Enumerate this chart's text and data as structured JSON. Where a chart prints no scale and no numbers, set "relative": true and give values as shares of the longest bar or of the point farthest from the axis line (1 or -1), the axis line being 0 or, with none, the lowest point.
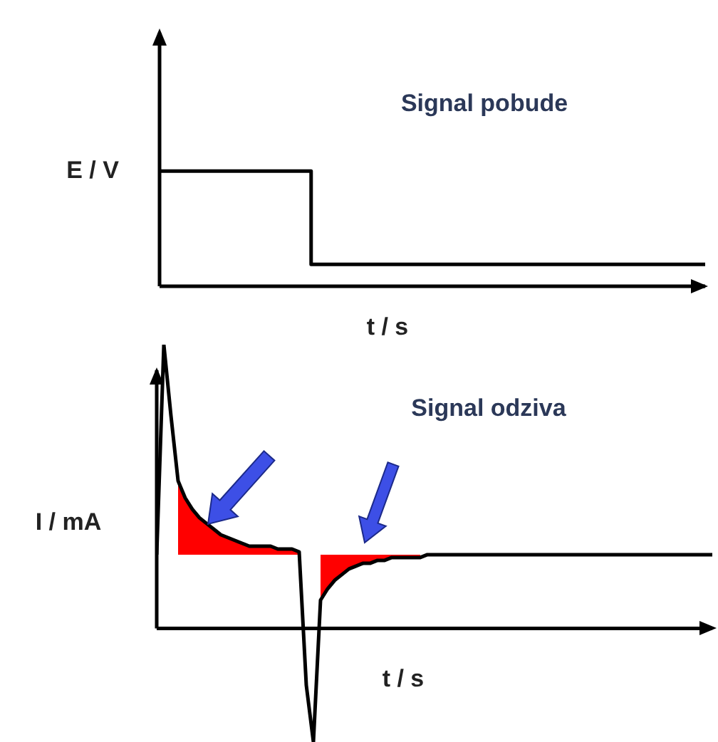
{
  "chart_data": [
    {
      "type": "step",
      "title": "Signal pobude",
      "xlabel": "t / s",
      "ylabel": "E / V",
      "relative": true,
      "tick_labels": false,
      "legend": false,
      "grid": false,
      "marker": "none",
      "categories": [
        null,
        null,
        null,
        null,
        null,
        null,
        null,
        null,
        null,
        null,
        null,
        null,
        null,
        null,
        null,
        null,
        null,
        null,
        null
      ],
      "series": [
        {
          "color": "#000000",
          "values": [
            1,
            1,
            1,
            1,
            1,
            0.19,
            0.19,
            0.19,
            0.19,
            0.19,
            0.19,
            0.19,
            0.19,
            0.19,
            0.19,
            0.19,
            0.19,
            0.19,
            0.19
          ]
        }
      ]
    },
    {
      "type": "line",
      "title": "Signal odziva",
      "xlabel": "t / s",
      "ylabel": "I / mA",
      "relative": true,
      "tick_labels": false,
      "legend": false,
      "grid": false,
      "marker": "none",
      "categories": [
        null,
        null,
        null,
        null,
        null,
        null,
        null,
        null,
        null,
        null,
        null,
        null,
        null,
        null,
        null,
        null,
        null,
        null,
        null,
        null,
        null,
        null,
        null,
        null,
        null,
        null,
        null,
        null,
        null,
        null,
        null,
        null,
        null,
        null,
        null,
        null,
        null,
        null,
        null,
        null,
        null,
        null,
        null,
        null,
        null,
        null,
        null,
        null,
        null,
        null,
        null,
        null,
        null,
        null,
        null,
        null,
        null,
        null,
        null,
        null,
        null,
        null,
        null,
        null,
        null,
        null,
        null,
        null,
        null,
        null,
        null,
        null,
        null,
        null,
        null,
        null,
        null,
        null,
        null
      ],
      "series": [
        {
          "type": "area",
          "color": "#ff0000",
          "values": [
            null,
            null,
            null,
            null,
            null,
            null,
            null,
            null,
            null,
            null,
            null,
            null,
            null,
            null,
            null,
            null,
            null,
            null,
            null,
            null,
            null,
            null,
            null,
            null,
            null,
            null,
            null,
            null,
            null,
            null,
            null,
            null,
            null,
            null,
            null,
            null,
            null,
            null,
            null,
            null,
            null,
            null,
            null,
            null,
            null,
            null,
            null,
            null,
            null,
            null,
            null,
            null,
            null,
            null,
            null,
            null,
            null,
            null,
            null,
            null,
            null,
            null,
            null,
            null,
            null,
            null,
            null,
            null,
            null,
            null,
            null,
            null,
            null,
            null,
            null,
            null,
            null,
            null,
            null
          ],
          "lower": [
            null,
            null,
            null,
            0.26,
            0.26,
            0.26,
            0.26,
            0.26,
            0.26,
            0.26,
            0.26,
            0.26,
            0.26,
            0.26,
            0.26,
            0.26,
            0.26,
            0.26,
            0.26,
            0.26,
            0.26,
            null,
            null,
            0.1,
            0.14,
            0.17,
            0.19,
            0.21,
            0.22,
            0.23,
            0.23,
            0.24,
            0.24,
            0.25,
            0.25,
            0.25,
            0.25,
            0.25,
            null,
            null,
            null,
            null,
            null,
            null,
            null,
            null,
            null,
            null,
            null,
            null,
            null,
            null,
            null,
            null,
            null,
            null,
            null,
            null,
            null,
            null,
            null,
            null,
            null,
            null,
            null,
            null,
            null,
            null,
            null,
            null,
            null,
            null,
            null,
            null,
            null,
            null,
            null,
            null,
            null
          ],
          "upper": [
            null,
            null,
            null,
            0.52,
            0.46,
            0.42,
            0.39,
            0.37,
            0.35,
            0.33,
            0.32,
            0.31,
            0.3,
            0.29,
            0.29,
            0.29,
            0.29,
            0.28,
            0.28,
            0.28,
            0.27,
            null,
            null,
            0.26,
            0.26,
            0.26,
            0.26,
            0.26,
            0.26,
            0.26,
            0.26,
            0.26,
            0.26,
            0.26,
            0.26,
            0.26,
            0.26,
            0.26,
            null,
            null,
            null,
            null,
            null,
            null,
            null,
            null,
            null,
            null,
            null,
            null,
            null,
            null,
            null,
            null,
            null,
            null,
            null,
            null,
            null,
            null,
            null,
            null,
            null,
            null,
            null,
            null,
            null,
            null,
            null,
            null,
            null,
            null,
            null,
            null,
            null,
            null,
            null,
            null,
            null
          ]
        },
        {
          "color": "#000000",
          "values": [
            0.26,
            1,
            0.75,
            0.52,
            0.46,
            0.42,
            0.39,
            0.37,
            0.35,
            0.33,
            0.32,
            0.31,
            0.3,
            0.29,
            0.29,
            0.29,
            0.29,
            0.28,
            0.28,
            0.28,
            0.27,
            -0.2,
            -0.4,
            0.1,
            0.14,
            0.17,
            0.19,
            0.21,
            0.22,
            0.23,
            0.23,
            0.24,
            0.24,
            0.25,
            0.25,
            0.25,
            0.25,
            0.25,
            0.26,
            0.26,
            0.26,
            0.26,
            0.26,
            0.26,
            0.26,
            0.26,
            0.26,
            0.26,
            0.26,
            0.26,
            0.26,
            0.26,
            0.26,
            0.26,
            0.26,
            0.26,
            0.26,
            0.26,
            0.26,
            0.26,
            0.26,
            0.26,
            0.26,
            0.26,
            0.26,
            0.26,
            0.26,
            0.26,
            0.26,
            0.26,
            0.26,
            0.26,
            0.26,
            0.26,
            0.26,
            0.26,
            0.26,
            0.26,
            0.26
          ]
        }
      ]
    }
  ]
}
